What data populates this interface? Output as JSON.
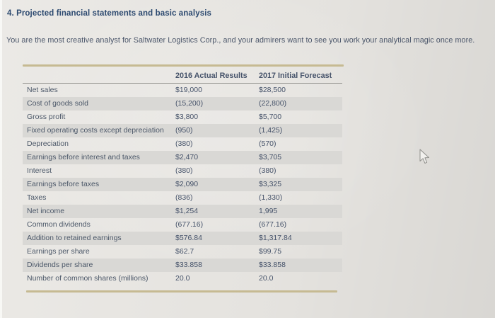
{
  "page": {
    "title": "4. Projected financial statements and basic analysis",
    "intro": "You are the most creative analyst for Saltwater Logistics Corp., and your admirers want to see you work your analytical magic once more."
  },
  "table": {
    "headers": {
      "label": "",
      "col2016": "2016 Actual Results",
      "col2017": "2017 Initial Forecast"
    },
    "rows": [
      {
        "label": "Net sales",
        "y2016": "$19,000",
        "y2017": "$28,500"
      },
      {
        "label": "Cost of goods sold",
        "y2016": "(15,200)",
        "y2017": "(22,800)"
      },
      {
        "label": "Gross profit",
        "y2016": "$3,800",
        "y2017": "$5,700"
      },
      {
        "label": "Fixed operating costs except depreciation",
        "y2016": "(950)",
        "y2017": "(1,425)"
      },
      {
        "label": "Depreciation",
        "y2016": "(380)",
        "y2017": "(570)"
      },
      {
        "label": "Earnings before interest and taxes",
        "y2016": "$2,470",
        "y2017": "$3,705"
      },
      {
        "label": "Interest",
        "y2016": "(380)",
        "y2017": "(380)"
      },
      {
        "label": "Earnings before taxes",
        "y2016": "$2,090",
        "y2017": "$3,325"
      },
      {
        "label": "Taxes",
        "y2016": "(836)",
        "y2017": "(1,330)"
      },
      {
        "label": "Net income",
        "y2016": "$1,254",
        "y2017": "1,995"
      },
      {
        "label": "Common dividends",
        "y2016": "(677.16)",
        "y2017": "(677.16)"
      },
      {
        "label": "Addition to retained earnings",
        "y2016": "$576.84",
        "y2017": "$1,317.84"
      },
      {
        "label": "Earnings per share",
        "y2016": "$62.7",
        "y2017": "$99.75"
      },
      {
        "label": "Dividends per share",
        "y2016": "$33.858",
        "y2017": "$33.858"
      },
      {
        "label": "Number of common shares (millions)",
        "y2016": "20.0",
        "y2017": "20.0"
      }
    ]
  },
  "icons": {
    "cursor": "arrow-pointer-icon"
  },
  "colors": {
    "accent_rule": "#c6ba92",
    "row_stripe": "#d9d8d5",
    "title_text": "#2d4a70",
    "body_text": "#4c5869",
    "page_background": "#e9e7e3"
  }
}
